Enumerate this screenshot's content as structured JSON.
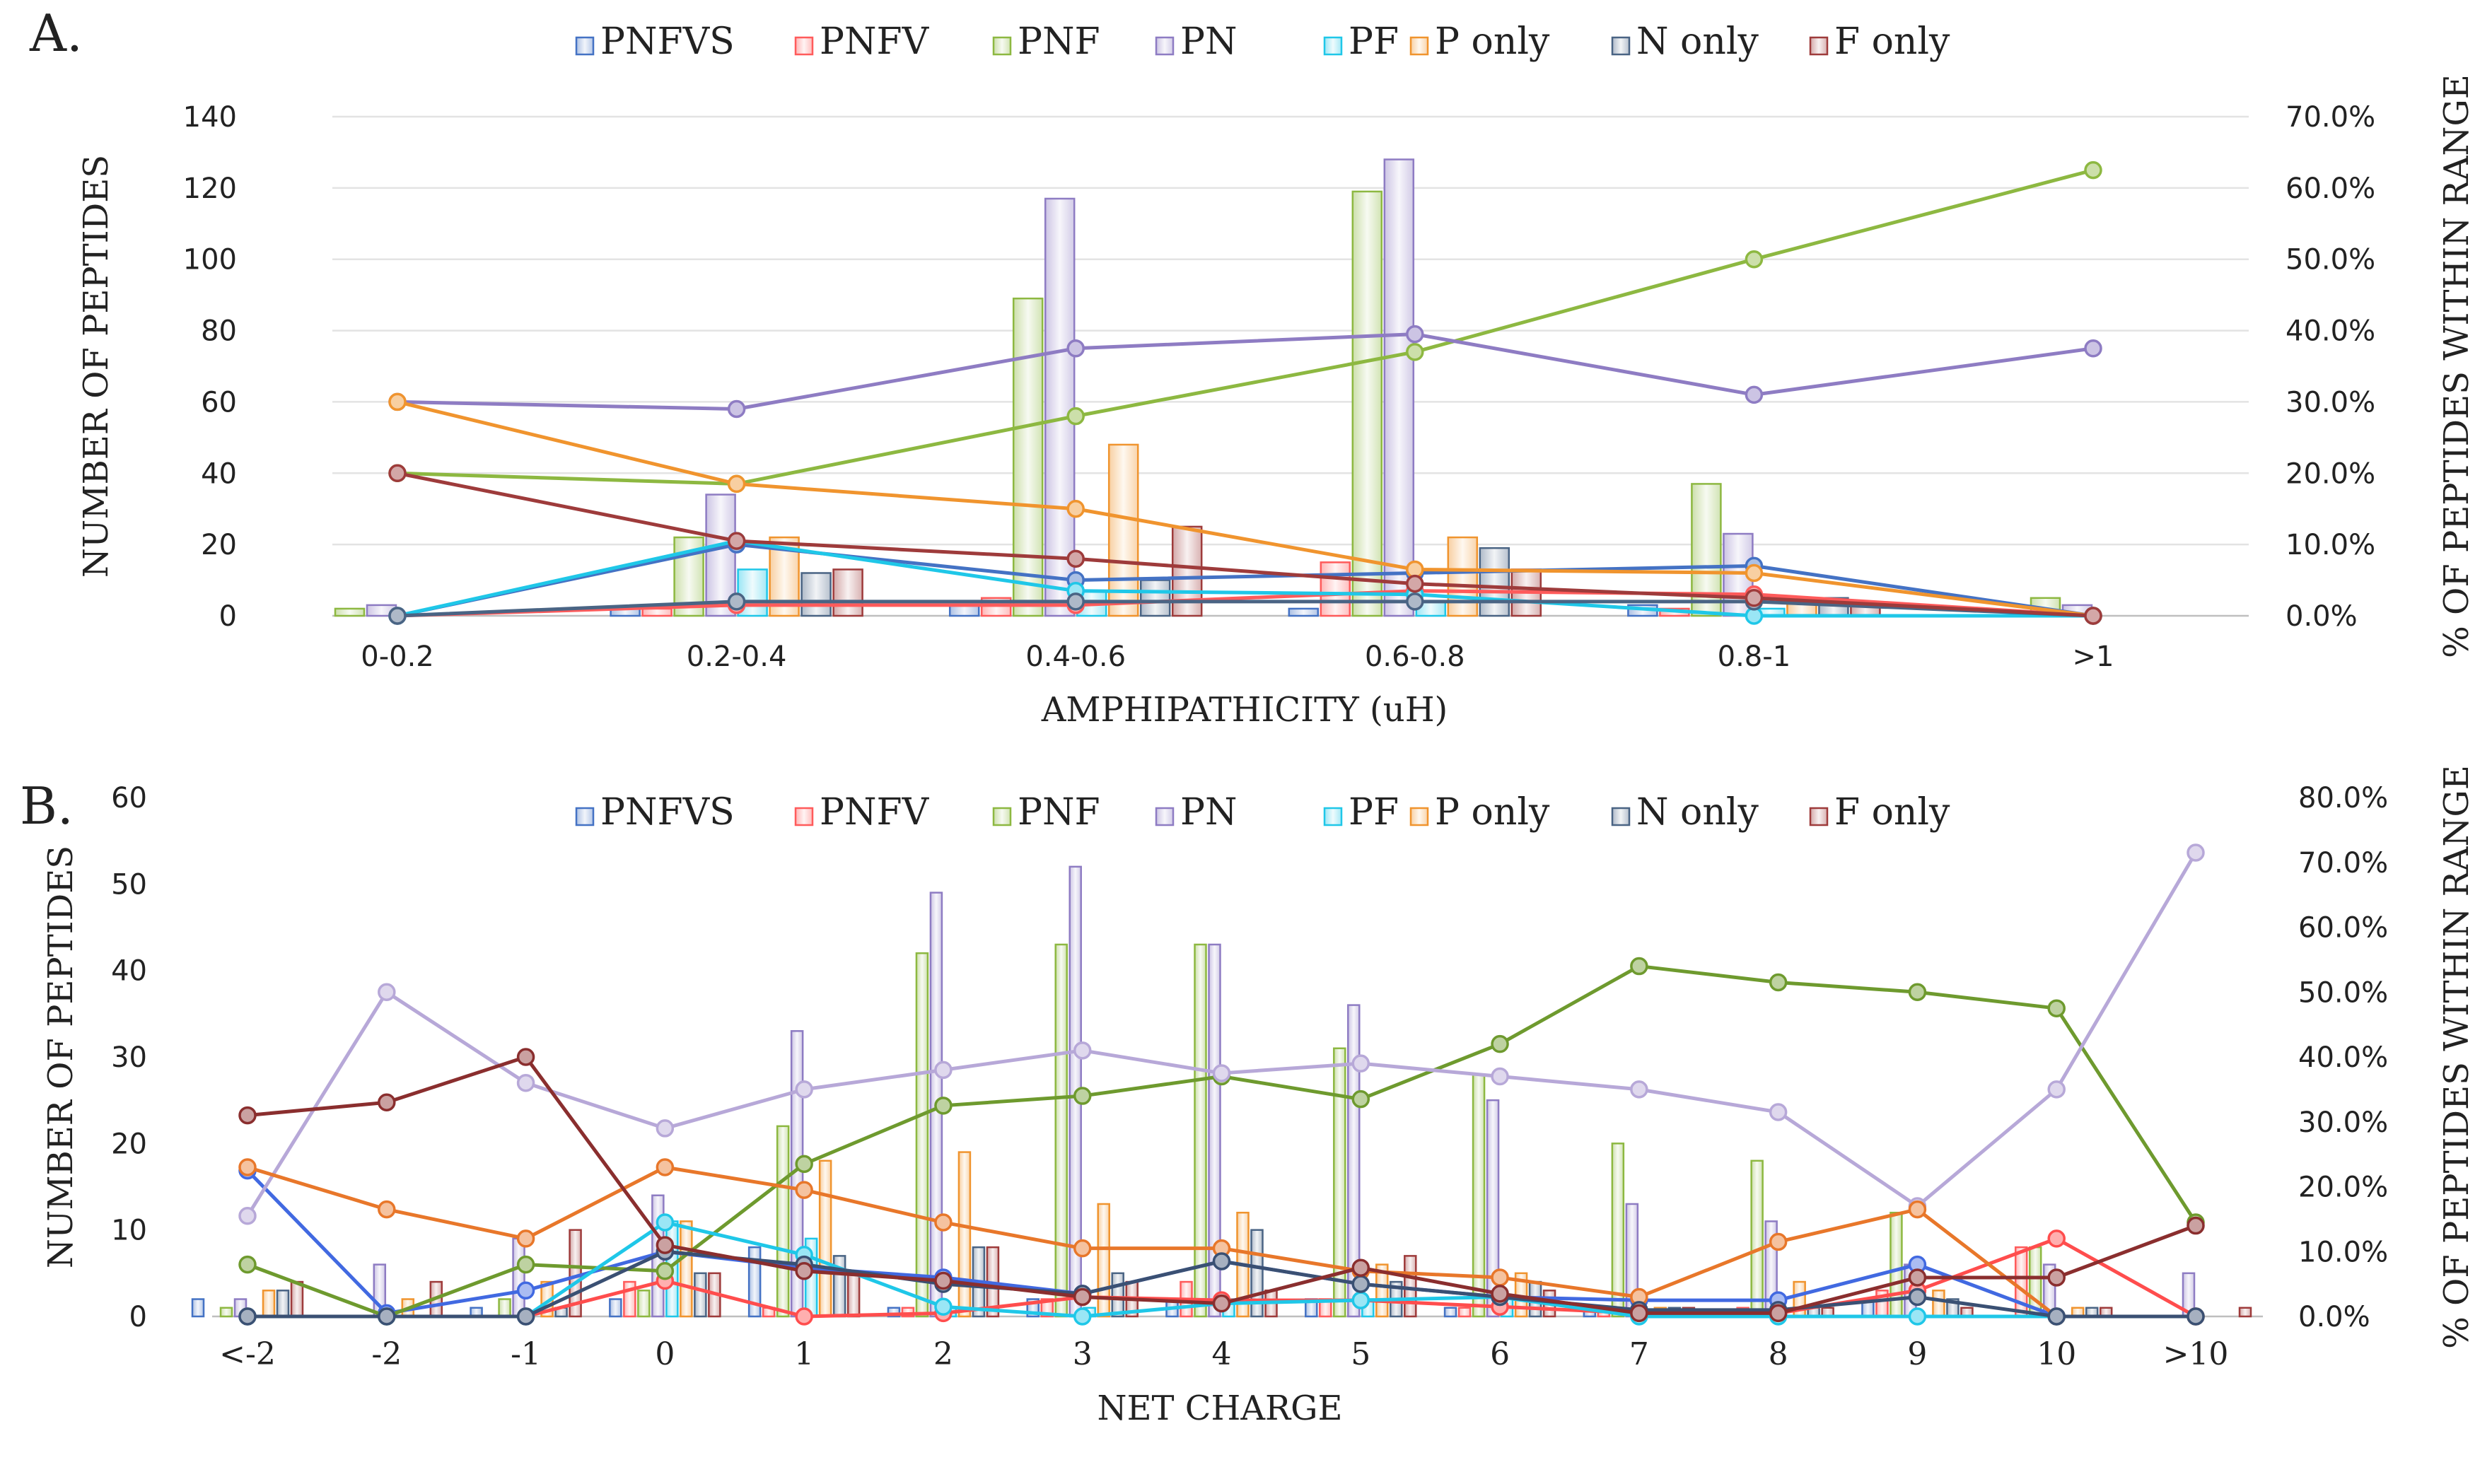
{
  "chart_data": [
    {
      "panel_label": "A.",
      "type": "bar",
      "xlabel": "AMPHIPATHICITY  (uH)",
      "ylabel": "NUMBER OF PEPTIDES",
      "y2label": "% OF PEPTIDES WITHIN RANGE",
      "ylim": [
        0,
        140
      ],
      "yticks": [
        "0",
        "20",
        "40",
        "60",
        "80",
        "100",
        "120",
        "140"
      ],
      "y2lim": [
        0,
        70
      ],
      "y2ticks": [
        "0.0%",
        "10.0%",
        "20.0%",
        "30.0%",
        "40.0%",
        "50.0%",
        "60.0%",
        "70.0%"
      ],
      "grid": true,
      "legend_position": "top",
      "categories": [
        "0-0.2",
        "0.2-0.4",
        "0.4-0.6",
        "0.6-0.8",
        "0.8-1",
        ">1"
      ],
      "series": [
        {
          "name": "PNFVS",
          "color": "#4472C4",
          "bars": [
            0,
            2,
            3,
            2,
            3,
            0
          ],
          "line": [
            0,
            10,
            5,
            6,
            7,
            0
          ]
        },
        {
          "name": "PNFV",
          "color": "#FF5B5B",
          "bars": [
            0,
            2,
            5,
            15,
            2,
            0
          ],
          "line": [
            0,
            1.5,
            1.5,
            3.5,
            3,
            0
          ]
        },
        {
          "name": "PNF",
          "color": "#8DB841",
          "bars": [
            2,
            22,
            89,
            119,
            37,
            5
          ],
          "line": [
            20,
            18.5,
            28,
            37,
            50,
            62.5
          ]
        },
        {
          "name": "PN",
          "color": "#8E7CC3",
          "bars": [
            3,
            34,
            117,
            128,
            23,
            3
          ],
          "line": [
            30,
            29,
            37.5,
            39.5,
            31,
            37.5
          ]
        },
        {
          "name": "PF",
          "color": "#1FC7E8",
          "bars": [
            0,
            13,
            7,
            4,
            2,
            0
          ],
          "line": [
            0,
            10.5,
            3.5,
            3,
            0,
            0
          ]
        },
        {
          "name": "P only",
          "color": "#F0942E",
          "bars": [
            0,
            22,
            48,
            22,
            5,
            0
          ],
          "line": [
            30,
            18.5,
            15,
            6.5,
            6,
            0
          ]
        },
        {
          "name": "N only",
          "color": "#4A6484",
          "bars": [
            0,
            12,
            10,
            19,
            5,
            0
          ],
          "line": [
            0,
            2,
            2,
            2,
            2,
            0
          ]
        },
        {
          "name": "F only",
          "color": "#9E3B3B",
          "bars": [
            0,
            13,
            25,
            13,
            3,
            0
          ],
          "line": [
            20,
            10.5,
            8,
            4.5,
            2.5,
            0
          ]
        }
      ]
    },
    {
      "panel_label": "B.",
      "type": "bar",
      "xlabel": "NET CHARGE",
      "ylabel": "NUMBER OF PEPTIDES",
      "y2label": "% OF PEPTIDES WITHIN RANGE",
      "ylim": [
        0,
        60
      ],
      "yticks": [
        "0",
        "10",
        "20",
        "30",
        "40",
        "50",
        "60"
      ],
      "y2lim": [
        0,
        80
      ],
      "y2ticks": [
        "0.0%",
        "10.0%",
        "20.0%",
        "30.0%",
        "40.0%",
        "50.0%",
        "60.0%",
        "70.0%",
        "80.0%"
      ],
      "grid": false,
      "legend_position": "top",
      "categories": [
        "<-2",
        "-2",
        "-1",
        "0",
        "1",
        "2",
        "3",
        "4",
        "5",
        "6",
        "7",
        "8",
        "9",
        "10",
        ">10"
      ],
      "series": [
        {
          "name": "PNFVS",
          "color": "#4472C4",
          "bars": [
            2,
            0,
            1,
            2,
            8,
            1,
            2,
            2,
            2,
            1,
            1,
            0,
            2,
            0,
            0
          ],
          "line": [
            22.5,
            0.5,
            4,
            10,
            7.5,
            6,
            3.5,
            8.5,
            5,
            3,
            2.5,
            2.5,
            8,
            0,
            0
          ]
        },
        {
          "name": "PNFV",
          "color": "#FF5B5B",
          "bars": [
            0,
            0,
            0,
            4,
            1,
            1,
            2,
            4,
            2,
            1,
            1,
            1,
            3,
            8,
            0
          ],
          "line": [
            0,
            0,
            0,
            5.5,
            0,
            0.5,
            3,
            2.5,
            2.5,
            1.5,
            0.5,
            0.5,
            4,
            12,
            0
          ]
        },
        {
          "name": "PNF",
          "color": "#8DB841",
          "bars": [
            1,
            0,
            2,
            3,
            22,
            42,
            43,
            43,
            31,
            28,
            20,
            18,
            12,
            8,
            0
          ],
          "line": [
            8,
            0,
            8,
            7,
            23.5,
            32.5,
            34,
            37,
            33.5,
            42,
            54,
            51.5,
            50,
            47.5,
            14.5
          ]
        },
        {
          "name": "PN",
          "color": "#8E7CC3",
          "bars": [
            2,
            6,
            9,
            14,
            33,
            49,
            52,
            43,
            36,
            25,
            13,
            11,
            6,
            6,
            5
          ],
          "line": [
            15.5,
            50,
            36,
            29,
            35,
            38,
            41,
            37.5,
            39,
            37,
            35,
            31.5,
            17,
            35,
            71.5
          ]
        },
        {
          "name": "PF",
          "color": "#1FC7E8",
          "bars": [
            0,
            0,
            0,
            11,
            9,
            1,
            1,
            2,
            2,
            2,
            0,
            0,
            0,
            0,
            0
          ],
          "line": [
            0,
            0,
            0,
            14.5,
            9.5,
            1.5,
            0,
            2,
            2.5,
            3,
            0,
            0,
            0,
            0,
            0
          ]
        },
        {
          "name": "P only",
          "color": "#F0942E",
          "bars": [
            3,
            2,
            4,
            11,
            18,
            19,
            13,
            12,
            6,
            5,
            1,
            4,
            3,
            1,
            0
          ],
          "line": [
            23,
            16.5,
            12,
            23,
            19.5,
            14.5,
            10.5,
            10.5,
            7,
            6,
            3,
            11.5,
            16.5,
            0,
            0
          ]
        },
        {
          "name": "N only",
          "color": "#4A6484",
          "bars": [
            3,
            0,
            1,
            5,
            7,
            8,
            5,
            10,
            4,
            4,
            1,
            1,
            2,
            1,
            0
          ],
          "line": [
            0,
            0,
            0,
            10,
            8,
            5,
            3.5,
            8.5,
            5,
            3,
            1,
            1,
            3,
            0,
            0
          ]
        },
        {
          "name": "F only",
          "color": "#9E3B3B",
          "bars": [
            4,
            4,
            10,
            5,
            5,
            8,
            4,
            3,
            7,
            3,
            1,
            1,
            1,
            1,
            1
          ],
          "line": [
            31,
            33,
            40,
            11,
            7,
            5.5,
            3,
            2,
            7.5,
            3.5,
            0.5,
            0.5,
            6,
            6,
            14
          ]
        }
      ]
    }
  ]
}
